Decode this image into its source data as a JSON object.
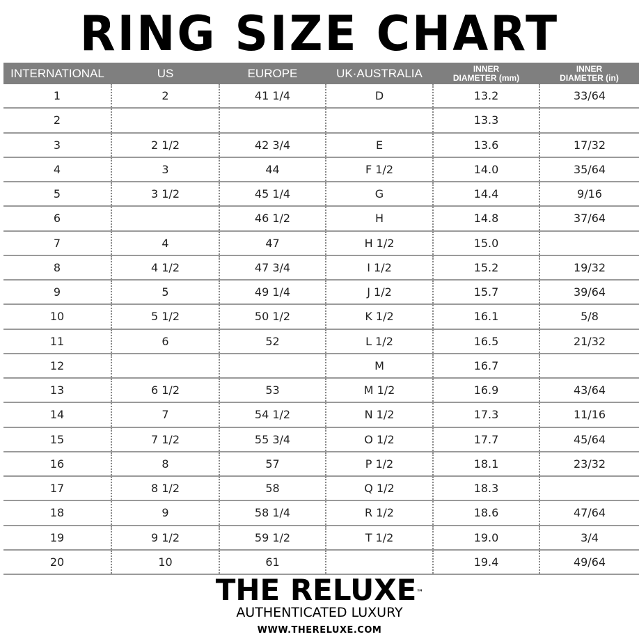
{
  "title": "RING SIZE CHART",
  "headers": [
    "INTERNATIONAL",
    "US",
    "EUROPE",
    "UK·AUSTRALIA",
    [
      "INNER",
      "DIAMETER (mm)"
    ],
    [
      "INNER",
      "DIAMETER (in)"
    ]
  ],
  "rows": [
    [
      "1",
      "2",
      "41 1/4",
      "D",
      "13.2",
      "33/64"
    ],
    [
      "2",
      "",
      "",
      "",
      "13.3",
      ""
    ],
    [
      "3",
      "2 1/2",
      "42 3/4",
      "E",
      "13.6",
      "17/32"
    ],
    [
      "4",
      "3",
      "44",
      "F 1/2",
      "14.0",
      "35/64"
    ],
    [
      "5",
      "3 1/2",
      "45 1/4",
      "G",
      "14.4",
      "9/16"
    ],
    [
      "6",
      "",
      "46 1/2",
      "H",
      "14.8",
      "37/64"
    ],
    [
      "7",
      "4",
      "47",
      "H 1/2",
      "15.0",
      ""
    ],
    [
      "8",
      "4 1/2",
      "47 3/4",
      "I 1/2",
      "15.2",
      "19/32"
    ],
    [
      "9",
      "5",
      "49 1/4",
      "J 1/2",
      "15.7",
      "39/64"
    ],
    [
      "10",
      "5 1/2",
      "50 1/2",
      "K 1/2",
      "16.1",
      "5/8"
    ],
    [
      "11",
      "6",
      "52",
      "L 1/2",
      "16.5",
      "21/32"
    ],
    [
      "12",
      "",
      "",
      "M",
      "16.7",
      ""
    ],
    [
      "13",
      "6 1/2",
      "53",
      "M 1/2",
      "16.9",
      "43/64"
    ],
    [
      "14",
      "7",
      "54 1/2",
      "N 1/2",
      "17.3",
      "11/16"
    ],
    [
      "15",
      "7 1/2",
      "55 3/4",
      "O 1/2",
      "17.7",
      "45/64"
    ],
    [
      "16",
      "8",
      "57",
      "P 1/2",
      "18.1",
      "23/32"
    ],
    [
      "17",
      "8 1/2",
      "58",
      "Q 1/2",
      "18.3",
      ""
    ],
    [
      "18",
      "9",
      "58 1/4",
      "R 1/2",
      "18.6",
      "47/64"
    ],
    [
      "19",
      "9 1/2",
      "59 1/2",
      "T 1/2",
      "19.0",
      "3/4"
    ],
    [
      "20",
      "10",
      "61",
      "",
      "19.4",
      "49/64"
    ]
  ],
  "logo": {
    "brand": "THE RELUXE",
    "tm": "™",
    "tagline": "AUTHENTICATED LUXURY",
    "url": "WWW.THERELUXE.COM"
  },
  "colors": {
    "header_bg": "#7f7f7f",
    "header_text": "#ffffff"
  }
}
